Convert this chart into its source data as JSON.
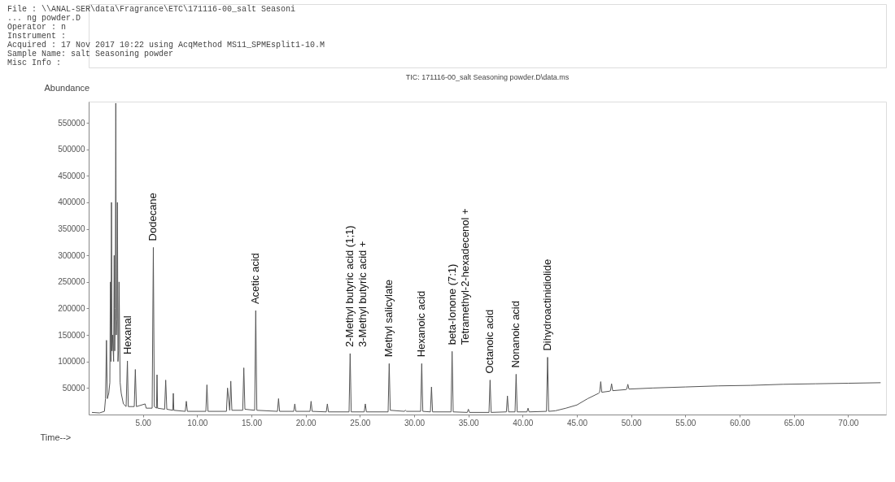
{
  "chart_data": {
    "type": "line",
    "title": "TIC: 171116-00_salt Seasoning powder.D\\data.ms",
    "xlabel": "Time-->",
    "ylabel": "Abundance",
    "annotations": [
      "File : \\\\ANAL-SER\\data\\Fragrance\\ETC\\171116-00_salt Seasoni",
      "... ng powder.D",
      "Operator : n",
      "Instrument :",
      "Acquired : 17 Nov 2017 10:22 using AcqMethod MS11_SPMEsplit1-10.M",
      "Sample Name: salt Seasoning powder",
      "Misc Info :",
      {
        "text": "Hexanal",
        "x": 3.57,
        "y": 101000
      },
      {
        "text": "Dodecane",
        "x": 5.96,
        "y": 315000
      },
      {
        "text": "Acetic acid",
        "x": 15.4,
        "y": 196000
      },
      {
        "text": "2-Methyl butyric acid (1;1)\n3-Methyl butyric acid +",
        "x": 24.1,
        "y": 115000
      },
      {
        "text": "Methyl salicylate",
        "x": 27.7,
        "y": 96000
      },
      {
        "text": "Hexanoic acid",
        "x": 30.7,
        "y": 96000
      },
      {
        "text": "beta-Ionone (7:1)\nTetramethyl-2-hexadecenol +",
        "x": 33.5,
        "y": 119000
      },
      {
        "text": "Octanoic acid",
        "x": 37.0,
        "y": 65000
      },
      {
        "text": "Nonanoic acid",
        "x": 39.4,
        "y": 76000
      },
      {
        "text": "Dihydroactinidiolide",
        "x": 42.3,
        "y": 108000
      }
    ],
    "x": [
      0.3,
      1.0,
      1.45,
      1.55,
      1.64,
      1.72,
      1.85,
      1.95,
      2.0,
      2.05,
      2.1,
      2.15,
      2.2,
      2.3,
      2.35,
      2.4,
      2.45,
      2.5,
      2.55,
      2.6,
      2.65,
      2.7,
      2.75,
      2.8,
      2.9,
      3.0,
      3.2,
      3.45,
      3.57,
      3.65,
      4.2,
      4.3,
      4.4,
      5.2,
      5.3,
      5.85,
      5.96,
      6.05,
      6.25,
      6.3,
      6.35,
      7.0,
      7.1,
      7.2,
      7.75,
      7.8,
      7.85,
      8.9,
      9.0,
      9.1,
      10.8,
      10.9,
      11.0,
      12.7,
      12.8,
      13.0,
      13.1,
      13.2,
      14.2,
      14.3,
      14.4,
      15.3,
      15.4,
      15.5,
      17.4,
      17.5,
      17.6,
      18.9,
      19.0,
      19.1,
      20.4,
      20.5,
      20.6,
      21.9,
      22.0,
      22.1,
      24.0,
      24.1,
      24.2,
      25.4,
      25.5,
      25.6,
      27.6,
      27.7,
      27.8,
      29.1,
      29.2,
      29.3,
      30.6,
      30.7,
      30.8,
      31.5,
      31.6,
      31.7,
      33.4,
      33.5,
      33.6,
      34.9,
      35.0,
      35.1,
      36.9,
      37.0,
      37.1,
      38.5,
      38.6,
      38.7,
      39.3,
      39.4,
      39.5,
      40.4,
      40.5,
      40.6,
      42.2,
      42.3,
      42.4,
      43.0,
      44.0,
      45.0,
      46.0,
      47.0,
      47.1,
      47.2,
      47.3,
      48.0,
      48.1,
      48.2,
      48.3,
      49.5,
      49.6,
      49.7,
      49.8,
      52.0,
      55.0,
      58.0,
      61.0,
      64.0,
      67.0,
      70.0,
      73.0
    ],
    "series": [
      {
        "color": "#555555",
        "values": [
          4000,
          3000,
          6000,
          30000,
          140000,
          30000,
          40000,
          60000,
          250000,
          100000,
          400000,
          120000,
          150000,
          100000,
          300000,
          120000,
          200000,
          587000,
          150000,
          180000,
          400000,
          100000,
          120000,
          250000,
          60000,
          40000,
          20000,
          15000,
          101000,
          15000,
          15000,
          85000,
          15000,
          20000,
          12000,
          12000,
          315000,
          15000,
          12000,
          75000,
          12000,
          10000,
          65000,
          10000,
          8000,
          40000,
          8000,
          6000,
          25000,
          6000,
          6000,
          56000,
          6000,
          6000,
          50000,
          8000,
          63000,
          8000,
          8000,
          88000,
          10000,
          8000,
          196000,
          8000,
          6000,
          30000,
          6000,
          6000,
          20000,
          6000,
          6000,
          25000,
          6000,
          5000,
          20000,
          5000,
          5000,
          115000,
          5000,
          5000,
          20000,
          5000,
          5000,
          96000,
          8000,
          6000,
          8000,
          6000,
          6000,
          96000,
          6000,
          5000,
          52000,
          5000,
          5000,
          119000,
          5000,
          4000,
          10000,
          4000,
          4000,
          65000,
          4000,
          5000,
          35000,
          5000,
          5000,
          76000,
          5000,
          5000,
          12000,
          5000,
          6000,
          108000,
          6000,
          7000,
          12000,
          18000,
          30000,
          40000,
          42000,
          62000,
          42000,
          44000,
          45000,
          58000,
          45000,
          47000,
          48000,
          57000,
          48000,
          50000,
          52000,
          54000,
          55000,
          57000,
          58000,
          59000,
          60000
        ]
      }
    ],
    "xlim": [
      0,
      73.5
    ],
    "ylim": [
      0,
      590000
    ],
    "xticks": [
      {
        "value": 5,
        "label": "5.00"
      },
      {
        "value": 10,
        "label": "10.00"
      },
      {
        "value": 15,
        "label": "15.00"
      },
      {
        "value": 20,
        "label": "20.00"
      },
      {
        "value": 25,
        "label": "25.00"
      },
      {
        "value": 30,
        "label": "30.00"
      },
      {
        "value": 35,
        "label": "35.00"
      },
      {
        "value": 40,
        "label": "40.00"
      },
      {
        "value": 45,
        "label": "45.00"
      },
      {
        "value": 50,
        "label": "50.00"
      },
      {
        "value": 55,
        "label": "55.00"
      },
      {
        "value": 60,
        "label": "60.00"
      },
      {
        "value": 65,
        "label": "65.00"
      },
      {
        "value": 70,
        "label": "70.00"
      }
    ],
    "yticks": [
      50000,
      100000,
      150000,
      200000,
      250000,
      300000,
      350000,
      400000,
      450000,
      500000,
      550000
    ],
    "grid": false,
    "marker": "none",
    "line_style": "solid"
  }
}
